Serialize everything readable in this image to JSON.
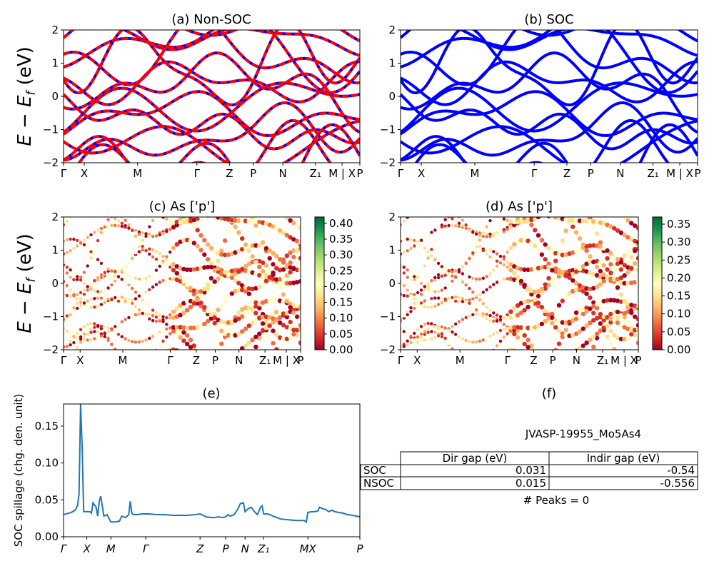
{
  "ylabel_bands": "E − E_f (eV)",
  "hs_labels": [
    "Γ",
    "X",
    "M",
    "Γ",
    "Z",
    "P",
    "N",
    "Z₁",
    "M | X",
    "P"
  ],
  "colorbars": {
    "c": {
      "ticks": [
        "0.00",
        "0.05",
        "0.10",
        "0.15",
        "0.20",
        "0.25",
        "0.30",
        "0.35",
        "0.40"
      ],
      "max": 0.42
    },
    "d": {
      "ticks": [
        "0.00",
        "0.05",
        "0.10",
        "0.15",
        "0.20",
        "0.25",
        "0.30",
        "0.35"
      ],
      "max": 0.37
    }
  },
  "chart_data": [
    {
      "type": "line",
      "title": "(a) Non-SOC",
      "ylabel": "E − E_f (eV)",
      "ylim": [
        -2,
        2
      ],
      "yticks": [
        -2,
        -1,
        0,
        1,
        2
      ],
      "series_colors": [
        "#0000ff",
        "#ff0000"
      ],
      "note": "band structure, red dashed over blue"
    },
    {
      "type": "line",
      "title": "(b) SOC",
      "ylim": [
        -2,
        2
      ],
      "yticks": [
        -2,
        -1,
        0,
        1,
        2
      ],
      "series_colors": [
        "#0000ff"
      ]
    },
    {
      "type": "scatter",
      "title": "(c)  As ['p']",
      "ylabel": "E − E_f (eV)",
      "ylim": [
        -2,
        2
      ],
      "yticks": [
        -2,
        -1,
        0,
        1,
        2
      ],
      "colormap": "RdYlGn",
      "clim": [
        0,
        0.42
      ]
    },
    {
      "type": "scatter",
      "title": "(d) As ['p']",
      "ylim": [
        -2,
        2
      ],
      "yticks": [
        -2,
        -1,
        0,
        1,
        2
      ],
      "colormap": "RdYlGn",
      "clim": [
        0,
        0.37
      ]
    },
    {
      "type": "line",
      "title": "(e)",
      "ylabel": "SOC spillage (chg. den. unit)",
      "ylim": [
        0,
        0.18
      ],
      "yticks": [
        "0.00",
        "0.05",
        "0.10",
        "0.15"
      ],
      "xticks": [
        "Γ",
        "X",
        "M",
        "Γ",
        "Z",
        "P",
        "N",
        "Z₁",
        "MX",
        "P"
      ],
      "xtick_pos": [
        0,
        30,
        61,
        106,
        176,
        209,
        234,
        258,
        315,
        382
      ],
      "xlim": [
        0,
        382
      ],
      "color": "#1f77b4",
      "x": [
        0,
        10,
        15,
        18,
        20,
        22,
        24,
        26,
        30,
        34,
        36,
        38,
        42,
        44,
        46,
        48,
        52,
        56,
        61,
        66,
        72,
        75,
        80,
        84,
        86,
        88,
        90,
        96,
        100,
        110,
        120,
        130,
        140,
        150,
        160,
        170,
        176,
        180,
        184,
        190,
        195,
        200,
        205,
        209,
        212,
        215,
        220,
        225,
        228,
        232,
        234,
        238,
        242,
        246,
        250,
        254,
        256,
        258,
        262,
        266,
        270,
        275,
        280,
        290,
        300,
        310,
        313,
        315,
        320,
        324,
        328,
        330,
        334,
        338,
        342,
        346,
        350,
        354,
        360,
        366,
        372,
        378,
        382
      ],
      "y": [
        0.03,
        0.033,
        0.036,
        0.042,
        0.058,
        0.18,
        0.12,
        0.034,
        0.034,
        0.034,
        0.032,
        0.046,
        0.04,
        0.028,
        0.048,
        0.055,
        0.028,
        0.03,
        0.02,
        0.02,
        0.021,
        0.028,
        0.026,
        0.03,
        0.048,
        0.032,
        0.03,
        0.03,
        0.031,
        0.031,
        0.03,
        0.03,
        0.029,
        0.029,
        0.029,
        0.03,
        0.031,
        0.029,
        0.027,
        0.026,
        0.026,
        0.027,
        0.026,
        0.027,
        0.03,
        0.028,
        0.03,
        0.038,
        0.045,
        0.046,
        0.034,
        0.038,
        0.04,
        0.034,
        0.03,
        0.04,
        0.042,
        0.031,
        0.031,
        0.03,
        0.028,
        0.026,
        0.024,
        0.023,
        0.022,
        0.022,
        0.02,
        0.033,
        0.034,
        0.034,
        0.035,
        0.04,
        0.038,
        0.037,
        0.034,
        0.036,
        0.034,
        0.033,
        0.032,
        0.03,
        0.029,
        0.028,
        0.027
      ]
    },
    {
      "type": "table",
      "title": "(f)",
      "subtitle": "JVASP-19955_Mo5As4",
      "columns": [
        "",
        "Dir gap (eV)",
        "Indir gap (eV)"
      ],
      "rows": [
        [
          "SOC",
          "0.031",
          "-0.54"
        ],
        [
          "NSOC",
          "0.015",
          "-0.556"
        ]
      ],
      "footer": "# Peaks = 0"
    }
  ]
}
